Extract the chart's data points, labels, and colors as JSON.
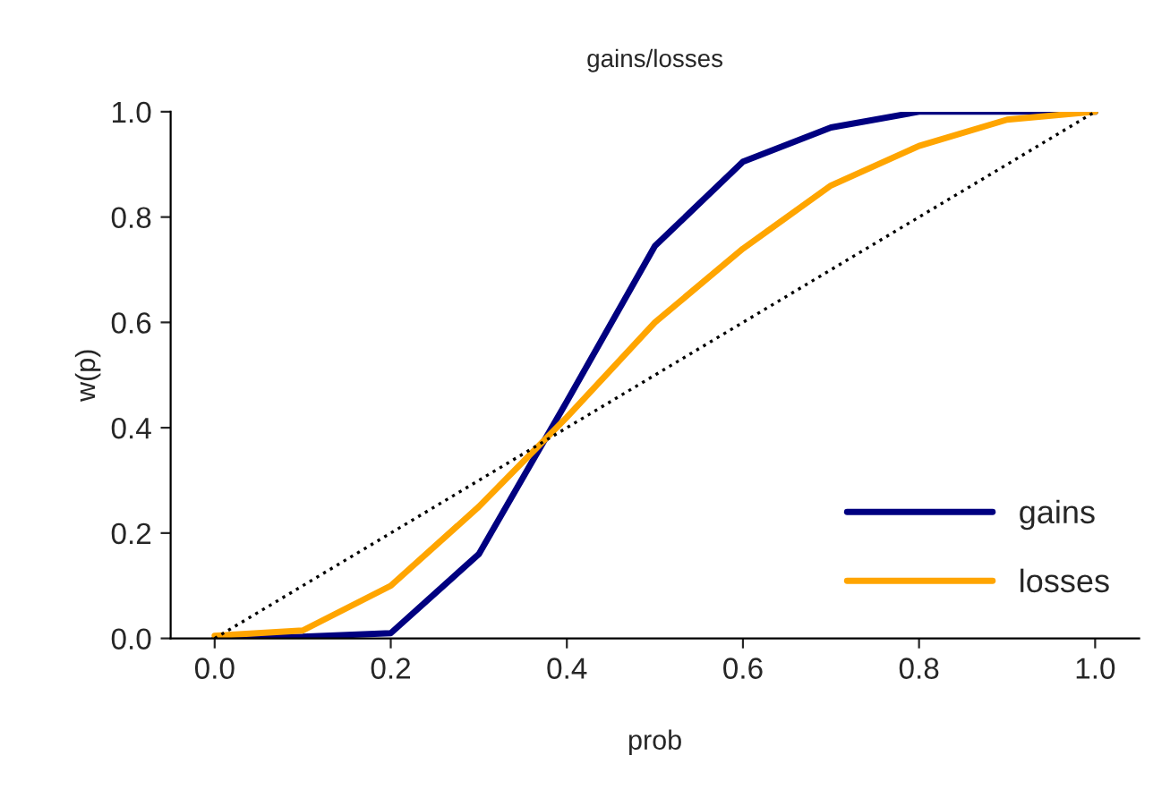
{
  "chart_data": {
    "type": "line",
    "title": "gains/losses",
    "xlabel": "prob",
    "ylabel": "w(p)",
    "x": [
      0,
      0.1,
      0.2,
      0.3,
      0.4,
      0.5,
      0.6,
      0.7,
      0.8,
      0.9,
      1.0
    ],
    "series": [
      {
        "name": "gains",
        "color": "#000080",
        "values": [
          0,
          0.003,
          0.01,
          0.16,
          0.45,
          0.745,
          0.905,
          0.97,
          1.0,
          1.0,
          1.0
        ]
      },
      {
        "name": "losses",
        "color": "#ffa500",
        "values": [
          0.005,
          0.015,
          0.1,
          0.25,
          0.42,
          0.6,
          0.74,
          0.86,
          0.935,
          0.985,
          1.0
        ]
      },
      {
        "color": "#000000",
        "line_style": "dotted",
        "values": [
          0,
          0.1,
          0.2,
          0.3,
          0.4,
          0.5,
          0.6,
          0.7,
          0.8,
          0.9,
          1.0
        ]
      }
    ],
    "xlim": [
      -0.05,
      1.05
    ],
    "xticks": [
      {
        "value": 0,
        "label": "0.0"
      },
      {
        "value": 0.2,
        "label": "0.2"
      },
      {
        "value": 0.4,
        "label": "0.4"
      },
      {
        "value": 0.6,
        "label": "0.6"
      },
      {
        "value": 0.8,
        "label": "0.8"
      },
      {
        "value": 1.0,
        "label": "1.0"
      }
    ],
    "ylim": [
      0,
      1.0
    ],
    "yticks": [
      {
        "value": 0,
        "label": "0.0"
      },
      {
        "value": 0.2,
        "label": "0.2"
      },
      {
        "value": 0.4,
        "label": "0.4"
      },
      {
        "value": 0.6,
        "label": "0.6"
      },
      {
        "value": 0.8,
        "label": "0.8"
      },
      {
        "value": 1.0,
        "label": "1.0"
      }
    ],
    "legend": "bottom right",
    "grid": false,
    "marker": "none"
  }
}
